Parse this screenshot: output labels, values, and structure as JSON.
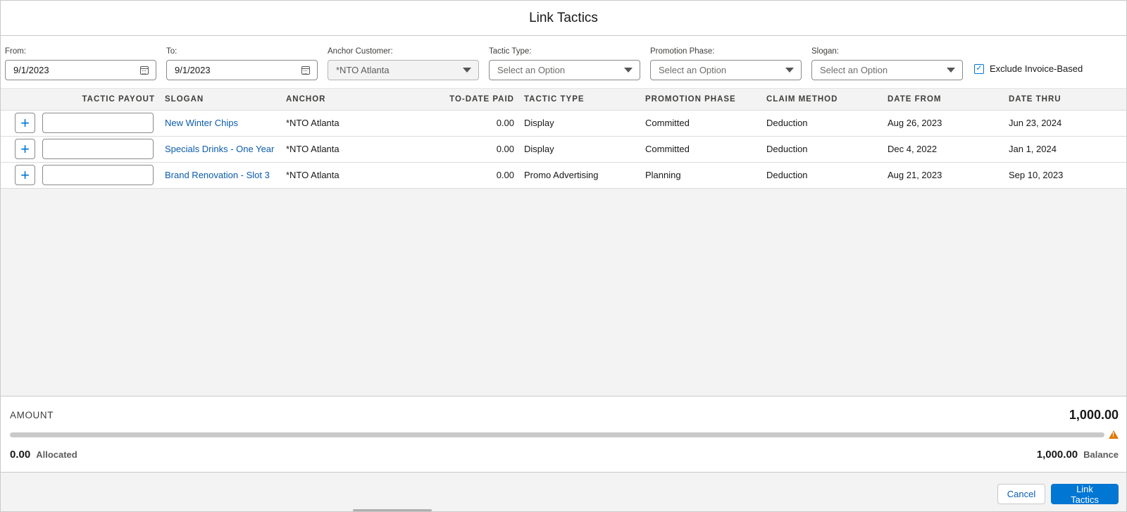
{
  "modal": {
    "title": "Link Tactics"
  },
  "filters": {
    "from": {
      "label": "From:",
      "value": "9/1/2023"
    },
    "to": {
      "label": "To:",
      "value": "9/1/2023"
    },
    "anchor_customer": {
      "label": "Anchor Customer:",
      "value": "*NTO Atlanta"
    },
    "tactic_type": {
      "label": "Tactic Type:",
      "placeholder": "Select an Option"
    },
    "promotion_phase": {
      "label": "Promotion Phase:",
      "placeholder": "Select an Option"
    },
    "slogan": {
      "label": "Slogan:",
      "placeholder": "Select an Option"
    },
    "exclude_invoice": {
      "label": "Exclude Invoice-Based",
      "checked": true
    }
  },
  "table": {
    "columns": [
      "Tactic Payout",
      "Slogan",
      "Anchor",
      "To-Date Paid",
      "Tactic Type",
      "Promotion Phase",
      "Claim Method",
      "Date From",
      "Date Thru"
    ],
    "rows": [
      {
        "slogan": "New Winter Chips",
        "anchor": "*NTO Atlanta",
        "paid": "0.00",
        "tactic_type": "Display",
        "phase": "Committed",
        "claim": "Deduction",
        "date_from": "Aug 26, 2023",
        "date_thru": "Jun 23, 2024"
      },
      {
        "slogan": "Specials Drinks - One Year",
        "anchor": "*NTO Atlanta",
        "paid": "0.00",
        "tactic_type": "Display",
        "phase": "Committed",
        "claim": "Deduction",
        "date_from": "Dec 4, 2022",
        "date_thru": "Jan 1, 2024"
      },
      {
        "slogan": "Brand Renovation - Slot 3",
        "anchor": "*NTO Atlanta",
        "paid": "0.00",
        "tactic_type": "Promo Advertising",
        "phase": "Planning",
        "claim": "Deduction",
        "date_from": "Aug 21, 2023",
        "date_thru": "Sep 10, 2023"
      }
    ],
    "add_glyph": "+"
  },
  "summary": {
    "amount_label": "AMOUNT",
    "amount_value": "1,000.00",
    "allocated_value": "0.00",
    "allocated_label": "Allocated",
    "balance_value": "1,000.00",
    "balance_label": "Balance",
    "allocated_fraction": 0
  },
  "footer": {
    "cancel_label": "Cancel",
    "link_label": "Link Tactics"
  },
  "colors": {
    "brand": "#0176d3",
    "link": "#0b5cab",
    "warning": "#dd7a01"
  },
  "icons": {
    "date": "calendar-icon",
    "dropdown": "chevron-down-icon",
    "add": "add-icon",
    "warning": "warning-icon",
    "check": "check-icon"
  }
}
